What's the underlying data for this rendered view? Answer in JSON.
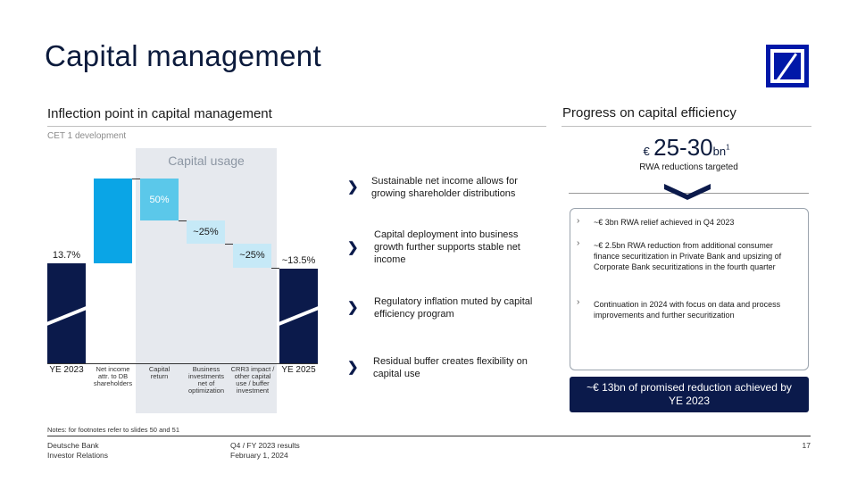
{
  "title": "Capital management",
  "left": {
    "heading": "Inflection point in capital management",
    "subheading": "CET 1 development",
    "capital_usage_label": "Capital usage"
  },
  "chart_data": {
    "type": "waterfall",
    "title": "",
    "subtitle": "CET 1 development",
    "categories": [
      "YE 2023",
      "Net income attr. to DB shareholders",
      "Capital return",
      "Business investments net of optimization",
      "CRR3 impact / other capital use / buffer investment",
      "YE 2025"
    ],
    "value_labels": [
      "13.7%",
      "",
      "50%",
      "~25%",
      "~25%",
      "~13.5%"
    ],
    "values": [
      13.7,
      null,
      null,
      null,
      null,
      13.5
    ],
    "highlighted_group": "Capital usage"
  },
  "bullets": [
    "Sustainable net income allows for growing shareholder distributions",
    "Capital deployment into business growth further supports stable net income",
    "Regulatory inflation muted by capital efficiency program",
    "Residual buffer creates flexibility on capital use"
  ],
  "right": {
    "heading": "Progress on capital efficiency",
    "big_currency": "€",
    "big_value": "25-30",
    "big_unit": "bn",
    "big_footnote": "1",
    "big_caption": "RWA reductions targeted",
    "box_items": [
      "~€ 3bn RWA relief achieved in Q4 2023",
      "~€ 2.5bn RWA reduction from additional consumer finance securitization in Private Bank and upsizing of Corporate Bank securitizations in the fourth quarter",
      "Continuation in 2024 with focus on data and process improvements and further securitization"
    ],
    "banner": "~€ 13bn of promised reduction achieved by YE 2023"
  },
  "notes": "Notes: for footnotes refer to slides 50 and 51",
  "footer": {
    "company": "Deutsche Bank",
    "dept": "Investor Relations",
    "report": "Q4 / FY 2023 results",
    "date": "February 1, 2024",
    "page": "17"
  },
  "colors": {
    "navy": "#0b1a4b",
    "blue": "#0aa5e6",
    "light_blue": "#5bc8ea",
    "pale_blue": "#c6e9f7",
    "brand_blue": "#0018a8"
  }
}
